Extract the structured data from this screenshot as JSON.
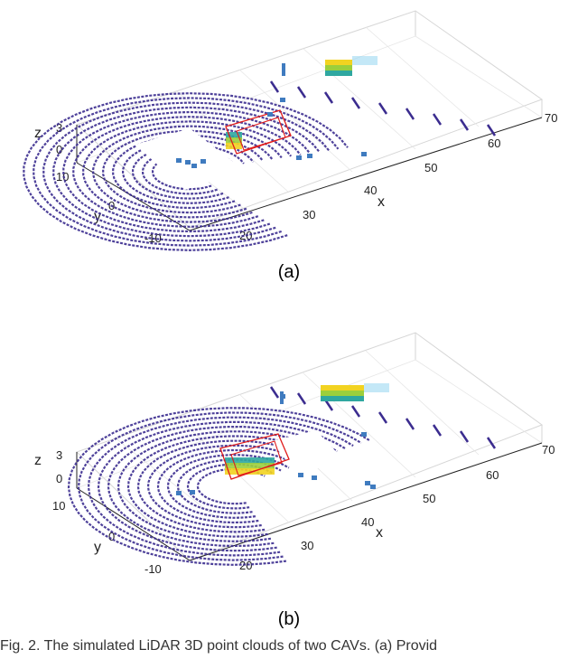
{
  "figure": {
    "caption": "Fig. 2. The simulated LiDAR 3D point clouds of two CAVs. (a) Provid"
  },
  "colors": {
    "scan_rings": "#3b2c8f",
    "scan_rings_light": "#3f7bbf",
    "object_low": "#2fa7a0",
    "object_mid": "#9ccf3c",
    "object_high": "#f2d321",
    "bounding_box": "#e01b1b",
    "grid": "#dcdcdc"
  },
  "panels": [
    {
      "label": "(a)",
      "chart_data": {
        "type": "scatter",
        "title": "",
        "xlabel": "x",
        "ylabel": "y",
        "zlabel": "z",
        "x_ticks": [
          "20",
          "30",
          "40",
          "50",
          "60",
          "70"
        ],
        "y_ticks": [
          "-10",
          "0",
          "10"
        ],
        "z_ticks": [
          "0",
          "3"
        ],
        "xlim": [
          15,
          70
        ],
        "ylim": [
          -12,
          12
        ],
        "zlim": [
          0,
          3
        ],
        "grid": true,
        "series": []
      }
    },
    {
      "label": "(b)",
      "chart_data": {
        "type": "scatter",
        "title": "",
        "xlabel": "x",
        "ylabel": "y",
        "zlabel": "z",
        "x_ticks": [
          "20",
          "30",
          "40",
          "50",
          "60",
          "70"
        ],
        "y_ticks": [
          "-10",
          "0",
          "10"
        ],
        "z_ticks": [
          "0",
          "3"
        ],
        "xlim": [
          15,
          70
        ],
        "ylim": [
          -12,
          12
        ],
        "zlim": [
          0,
          3
        ],
        "grid": true,
        "series": []
      }
    }
  ]
}
